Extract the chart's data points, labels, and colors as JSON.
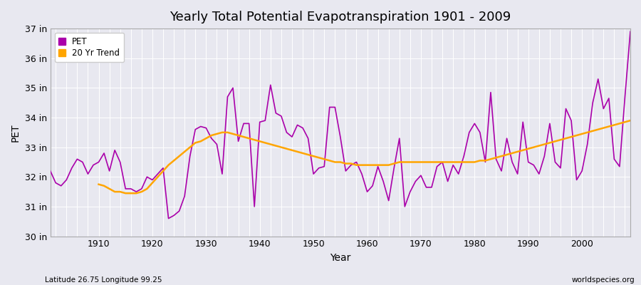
{
  "title": "Yearly Total Potential Evapotranspiration 1901 - 2009",
  "xlabel": "Year",
  "ylabel": "PET",
  "footnote_left": "Latitude 26.75 Longitude 99.25",
  "footnote_right": "worldspecies.org",
  "pet_color": "#aa00aa",
  "trend_color": "#FFA500",
  "background_color": "#e8e8f0",
  "grid_color": "#ffffff",
  "ylim": [
    30,
    37
  ],
  "ytick_labels": [
    "30 in",
    "31 in",
    "32 in",
    "33 in",
    "34 in",
    "35 in",
    "36 in",
    "37 in"
  ],
  "years": [
    1901,
    1902,
    1903,
    1904,
    1905,
    1906,
    1907,
    1908,
    1909,
    1910,
    1911,
    1912,
    1913,
    1914,
    1915,
    1916,
    1917,
    1918,
    1919,
    1920,
    1921,
    1922,
    1923,
    1924,
    1925,
    1926,
    1927,
    1928,
    1929,
    1930,
    1931,
    1932,
    1933,
    1934,
    1935,
    1936,
    1937,
    1938,
    1939,
    1940,
    1941,
    1942,
    1943,
    1944,
    1945,
    1946,
    1947,
    1948,
    1949,
    1950,
    1951,
    1952,
    1953,
    1954,
    1955,
    1956,
    1957,
    1958,
    1959,
    1960,
    1961,
    1962,
    1963,
    1964,
    1965,
    1966,
    1967,
    1968,
    1969,
    1970,
    1971,
    1972,
    1973,
    1974,
    1975,
    1976,
    1977,
    1978,
    1979,
    1980,
    1981,
    1982,
    1983,
    1984,
    1985,
    1986,
    1987,
    1988,
    1989,
    1990,
    1991,
    1992,
    1993,
    1994,
    1995,
    1996,
    1997,
    1998,
    1999,
    2000,
    2001,
    2002,
    2003,
    2004,
    2005,
    2006,
    2007,
    2008,
    2009
  ],
  "pet": [
    32.2,
    31.8,
    31.7,
    31.9,
    32.3,
    32.6,
    32.5,
    32.1,
    32.4,
    32.5,
    32.8,
    32.2,
    32.9,
    32.5,
    31.6,
    31.6,
    31.5,
    31.6,
    32.0,
    31.9,
    32.1,
    32.3,
    30.6,
    30.7,
    30.85,
    31.35,
    32.7,
    33.6,
    33.7,
    33.65,
    33.3,
    33.1,
    32.1,
    34.7,
    35.0,
    33.2,
    33.8,
    33.8,
    31.0,
    33.85,
    33.9,
    35.1,
    34.15,
    34.05,
    33.5,
    33.35,
    33.75,
    33.65,
    33.3,
    32.1,
    32.3,
    32.35,
    34.35,
    34.35,
    33.35,
    32.2,
    32.4,
    32.5,
    32.1,
    31.5,
    31.7,
    32.35,
    31.85,
    31.2,
    32.3,
    33.3,
    31.0,
    31.5,
    31.85,
    32.05,
    31.65,
    31.65,
    32.35,
    32.5,
    31.85,
    32.4,
    32.1,
    32.7,
    33.5,
    33.8,
    33.5,
    32.5,
    34.85,
    32.6,
    32.2,
    33.3,
    32.5,
    32.1,
    33.85,
    32.5,
    32.4,
    32.1,
    32.7,
    33.8,
    32.5,
    32.3,
    34.3,
    33.9,
    31.9,
    32.2,
    33.1,
    34.5,
    35.3,
    34.3,
    34.65,
    32.6,
    32.35,
    34.7,
    36.9
  ],
  "trend_years": [
    1910,
    1911,
    1912,
    1913,
    1914,
    1915,
    1916,
    1917,
    1918,
    1919,
    1920,
    1921,
    1922,
    1923,
    1924,
    1925,
    1926,
    1927,
    1928,
    1929,
    1930,
    1931,
    1932,
    1933,
    1934,
    1935,
    1936,
    1937,
    1938,
    1939,
    1940,
    1941,
    1942,
    1943,
    1944,
    1945,
    1946,
    1947,
    1948,
    1949,
    1950,
    1951,
    1952,
    1953,
    1954,
    1955,
    1956,
    1957,
    1958,
    1959,
    1960,
    1961,
    1962,
    1963,
    1964,
    1965,
    1966,
    1967,
    1968,
    1969,
    1970,
    1971,
    1972,
    1973,
    1974,
    1975,
    1976,
    1977,
    1978,
    1979,
    1980,
    1981,
    1982,
    1983,
    1984,
    1985,
    1986,
    1987,
    1988,
    1989,
    1990,
    1991,
    1992,
    1993,
    1994,
    1995,
    1996,
    1997,
    1998,
    1999,
    2000,
    2001,
    2002,
    2003,
    2004,
    2005,
    2006,
    2007,
    2008,
    2009
  ],
  "trend": [
    31.75,
    31.7,
    31.6,
    31.5,
    31.5,
    31.45,
    31.45,
    31.45,
    31.5,
    31.6,
    31.8,
    32.0,
    32.2,
    32.4,
    32.55,
    32.7,
    32.85,
    33.0,
    33.15,
    33.2,
    33.3,
    33.4,
    33.45,
    33.5,
    33.5,
    33.45,
    33.4,
    33.35,
    33.3,
    33.25,
    33.2,
    33.15,
    33.1,
    33.05,
    33.0,
    32.95,
    32.9,
    32.85,
    32.8,
    32.75,
    32.7,
    32.65,
    32.6,
    32.55,
    32.5,
    32.5,
    32.45,
    32.45,
    32.4,
    32.4,
    32.4,
    32.4,
    32.4,
    32.4,
    32.4,
    32.45,
    32.5,
    32.5,
    32.5,
    32.5,
    32.5,
    32.5,
    32.5,
    32.5,
    32.5,
    32.5,
    32.5,
    32.5,
    32.5,
    32.5,
    32.5,
    32.55,
    32.55,
    32.6,
    32.65,
    32.7,
    32.75,
    32.8,
    32.85,
    32.9,
    32.95,
    33.0,
    33.05,
    33.1,
    33.15,
    33.2,
    33.25,
    33.3,
    33.35,
    33.4,
    33.45,
    33.5,
    33.55,
    33.6,
    33.65,
    33.7,
    33.75,
    33.8,
    33.85,
    33.9
  ]
}
